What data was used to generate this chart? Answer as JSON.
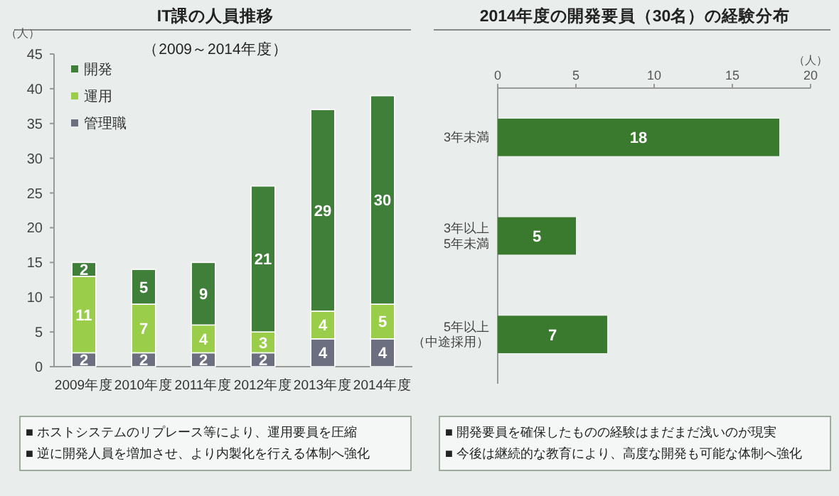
{
  "chart_data": [
    {
      "type": "bar",
      "title": "IT課の人員推移",
      "subtitle": "（2009～2014年度）",
      "ylabel": "（人）",
      "stacked": true,
      "legend": "top left",
      "data_labels": true,
      "categories": [
        "2009年度",
        "2010年度",
        "2011年度",
        "2012年度",
        "2013年度",
        "2014年度"
      ],
      "series": [
        {
          "name": "管理職",
          "color": "#6b6f80",
          "values": [
            2,
            2,
            2,
            2,
            4,
            4
          ]
        },
        {
          "name": "運用",
          "color": "#9acd4a",
          "values": [
            11,
            7,
            4,
            3,
            4,
            5
          ]
        },
        {
          "name": "開発",
          "color": "#3f7f3a",
          "values": [
            2,
            5,
            9,
            21,
            29,
            30
          ]
        }
      ],
      "ylim": [
        0,
        45
      ],
      "yticks": [
        0,
        5,
        10,
        15,
        20,
        25,
        30,
        35,
        40,
        45
      ],
      "annotations": [
        "■ ホストシステムのリプレース等により、運用要員を圧縮",
        "■ 逆に開発人員を増加させ、より内製化を行える体制へ強化"
      ]
    },
    {
      "type": "bar",
      "orientation": "horizontal",
      "title": "2014年度の開発要員（30名）の経験分布",
      "xlabel": "（人）",
      "data_labels": true,
      "categories": [
        "3年未満",
        "3年以上5年未満",
        "5年以上（中途採用）"
      ],
      "values": [
        18,
        5,
        7
      ],
      "color": "#3a7a2e",
      "xlim": [
        0,
        20
      ],
      "xticks": [
        0,
        5,
        10,
        15,
        20
      ],
      "annotations": [
        "■ 開発要員を確保したものの経験はまだまだ浅いのが現実",
        "■ 今後は継続的な教育により、高度な開発も可能な体制へ強化"
      ]
    }
  ]
}
